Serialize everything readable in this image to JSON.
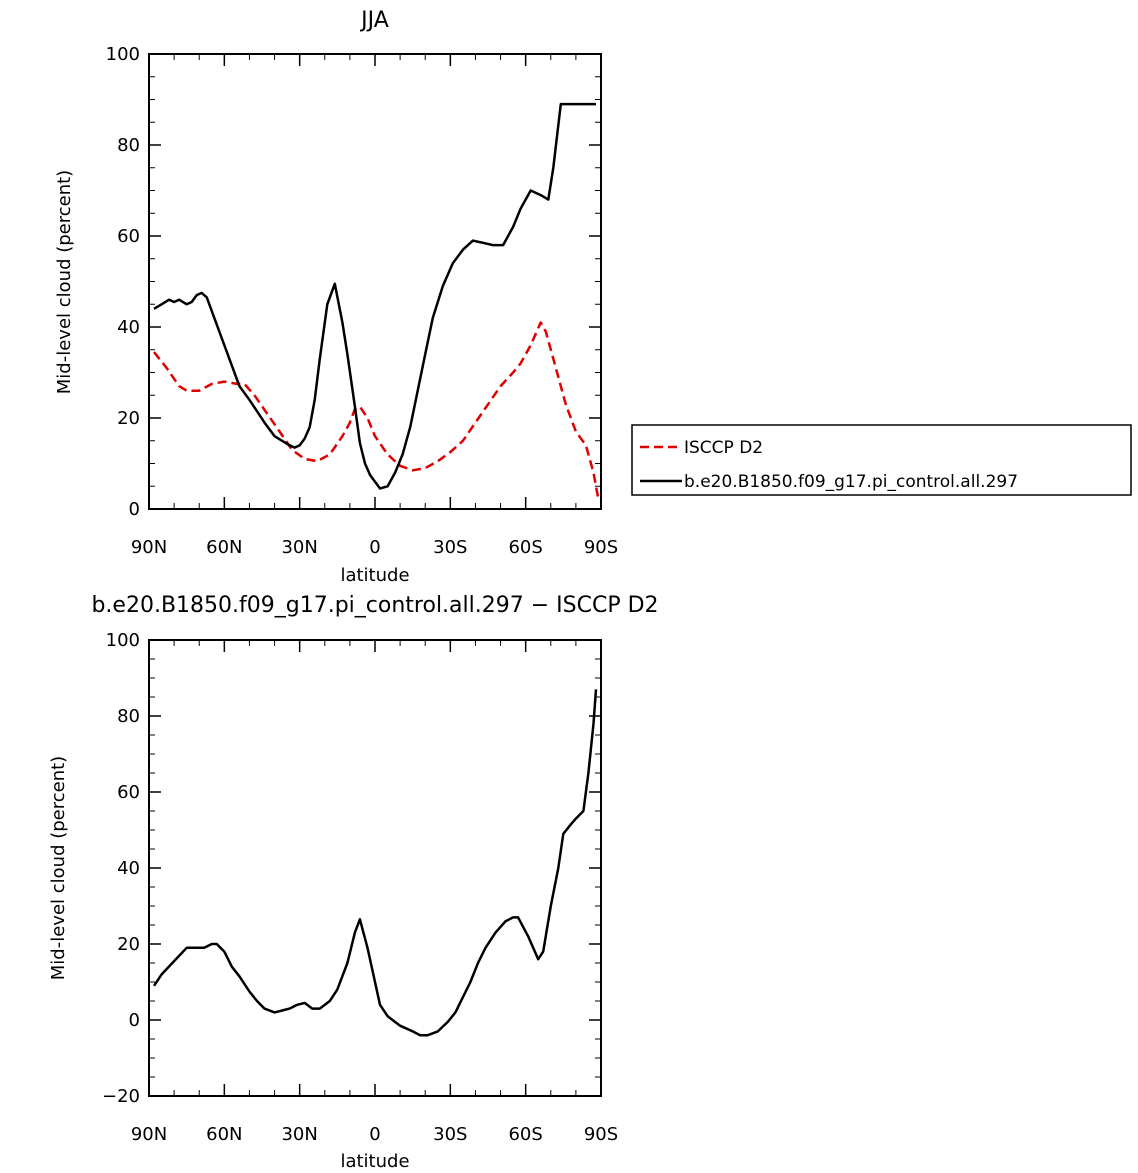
{
  "chart_data": [
    {
      "type": "line",
      "title": "JJA",
      "xlabel": "latitude",
      "ylabel": "Mid-level cloud (percent)",
      "xlim": [
        90,
        -90
      ],
      "ylim": [
        0,
        100
      ],
      "xticks": [
        90,
        60,
        30,
        0,
        -30,
        -60,
        -90
      ],
      "xtick_labels": [
        "90N",
        "60N",
        "30N",
        "0",
        "30S",
        "60S",
        "90S"
      ],
      "yticks": [
        0,
        20,
        40,
        60,
        80,
        100
      ],
      "ytick_labels": [
        "0",
        "20",
        "40",
        "60",
        "80",
        "100"
      ],
      "grid": false,
      "legend_position": "right",
      "series": [
        {
          "name": "ISCCP D2",
          "color": "#e00000",
          "dash": "dashed",
          "x": [
            88,
            83,
            78,
            75,
            70,
            65,
            60,
            55,
            52,
            48,
            43,
            38,
            33,
            28,
            23,
            18,
            13,
            10,
            8,
            6,
            3,
            0,
            -5,
            -10,
            -15,
            -20,
            -25,
            -30,
            -35,
            -40,
            -45,
            -50,
            -55,
            -58,
            -62,
            -66,
            -68,
            -72,
            -76,
            -80,
            -84,
            -87,
            -89
          ],
          "y": [
            34.5,
            31,
            27,
            26,
            26,
            27.5,
            28,
            27.5,
            27.5,
            25,
            21,
            17,
            13,
            11,
            10.5,
            12,
            16,
            19,
            22,
            22.5,
            20,
            16,
            12,
            9.5,
            8.5,
            9,
            10.5,
            12.5,
            15,
            19,
            23,
            27,
            30,
            32,
            36,
            41,
            39,
            31,
            23,
            17,
            14,
            8,
            2
          ]
        },
        {
          "name": "b.e20.B1850.f09_g17.pi_control.all.297",
          "color": "#000000",
          "dash": "solid",
          "x": [
            88,
            85,
            82,
            80,
            78,
            75,
            73,
            71,
            69,
            67,
            64,
            62,
            58,
            54,
            50,
            47,
            44,
            40,
            37,
            34,
            32,
            30,
            28,
            26,
            24,
            22,
            19,
            16,
            13,
            11,
            8,
            6,
            4,
            2,
            0,
            -2,
            -5,
            -8,
            -11,
            -14,
            -17,
            -20,
            -23,
            -27,
            -31,
            -35,
            -39,
            -43,
            -47,
            -51,
            -55,
            -58,
            -62,
            -66,
            -69,
            -71,
            -74,
            -77,
            -80,
            -84,
            -86,
            -88
          ],
          "y": [
            44,
            45,
            46,
            45.5,
            46,
            45,
            45.5,
            47,
            47.5,
            46.5,
            42,
            39,
            33,
            27,
            24,
            21.5,
            19,
            16,
            15,
            14,
            13.5,
            14,
            15.5,
            18,
            24,
            33,
            45,
            49.5,
            41,
            34,
            22.5,
            14.5,
            10,
            7.5,
            6,
            4.5,
            5,
            8,
            12,
            18,
            26,
            34,
            42,
            49,
            54,
            57,
            59,
            58.5,
            58,
            58,
            62,
            66,
            70,
            69,
            68,
            75,
            89,
            89,
            89,
            89,
            89,
            89
          ]
        }
      ]
    },
    {
      "type": "line",
      "title": "b.e20.B1850.f09_g17.pi_control.all.297 − ISCCP D2",
      "xlabel": "latitude",
      "ylabel": "Mid-level cloud (percent)",
      "xlim": [
        90,
        -90
      ],
      "ylim": [
        -20,
        100
      ],
      "xticks": [
        90,
        60,
        30,
        0,
        -30,
        -60,
        -90
      ],
      "xtick_labels": [
        "90N",
        "60N",
        "30N",
        "0",
        "30S",
        "60S",
        "90S"
      ],
      "yticks": [
        -20,
        0,
        20,
        40,
        60,
        80,
        100
      ],
      "ytick_labels": [
        "−20",
        "0",
        "20",
        "40",
        "60",
        "80",
        "100"
      ],
      "grid": false,
      "series": [
        {
          "color": "#000000",
          "dash": "solid",
          "x": [
            88,
            85,
            80,
            75,
            72,
            68,
            65,
            63,
            60,
            57,
            54,
            50,
            47,
            44,
            40,
            37,
            34,
            31,
            28,
            25,
            22,
            18,
            15,
            11,
            8,
            6,
            3,
            0,
            -2,
            -5,
            -10,
            -15,
            -18,
            -21,
            -25,
            -29,
            -32,
            -35,
            -38,
            -41,
            -44,
            -48,
            -52,
            -55,
            -57,
            -61,
            -65,
            -67,
            -70,
            -73,
            -75,
            -78,
            -80,
            -83,
            -85,
            -87,
            -88
          ],
          "y": [
            9,
            12,
            15.5,
            19,
            19,
            19,
            20,
            20,
            18,
            14,
            11.5,
            7.5,
            5,
            3,
            2,
            2.5,
            3,
            4,
            4.5,
            3,
            3,
            5,
            8,
            15,
            23,
            26.5,
            19,
            10,
            4,
            1,
            -1.5,
            -3,
            -4,
            -4,
            -3,
            -0.5,
            2,
            6,
            10,
            15,
            19,
            23,
            26,
            27,
            27,
            22,
            16,
            18,
            30,
            40,
            49,
            51.5,
            53,
            55,
            65,
            78,
            87
          ]
        }
      ]
    }
  ]
}
